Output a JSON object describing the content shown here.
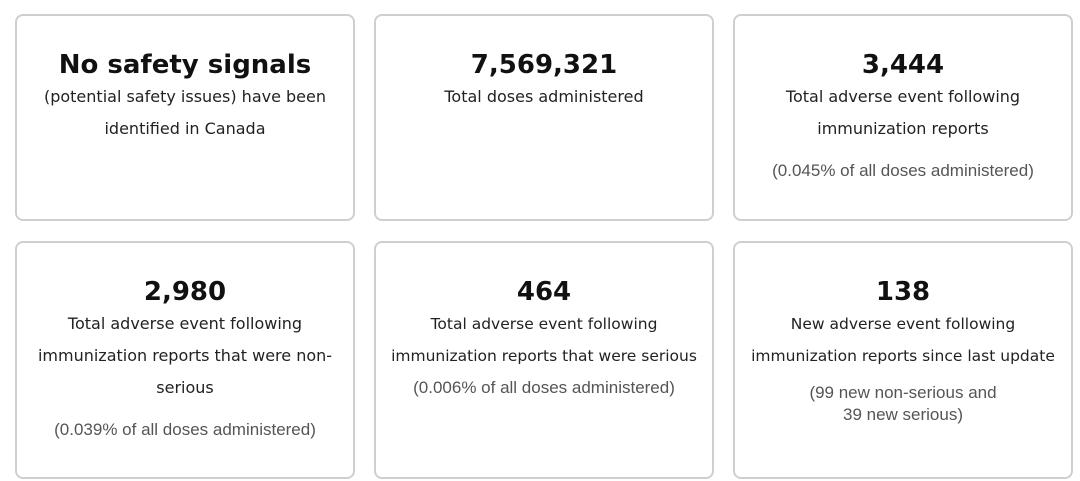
{
  "cards": [
    {
      "headline": "No safety signals",
      "desc": "(potential safety issues) have been identified in Canada",
      "note": ""
    },
    {
      "headline": "7,569,321",
      "desc": "Total doses administered",
      "note": ""
    },
    {
      "headline": "3,444",
      "desc": "Total adverse event following immunization reports",
      "note": "(0.045% of all doses administered)"
    },
    {
      "headline": "2,980",
      "desc": "Total adverse event following immunization reports that were non-serious",
      "note": "(0.039% of all doses administered)"
    },
    {
      "headline": "464",
      "desc": "Total adverse event following immunization reports that were serious",
      "note": "(0.006% of all doses administered)"
    },
    {
      "headline": "138",
      "desc": "New adverse event following immunization reports since last update",
      "note_line1": "(99 new non-serious and",
      "note_line2": "39 new serious)"
    }
  ]
}
